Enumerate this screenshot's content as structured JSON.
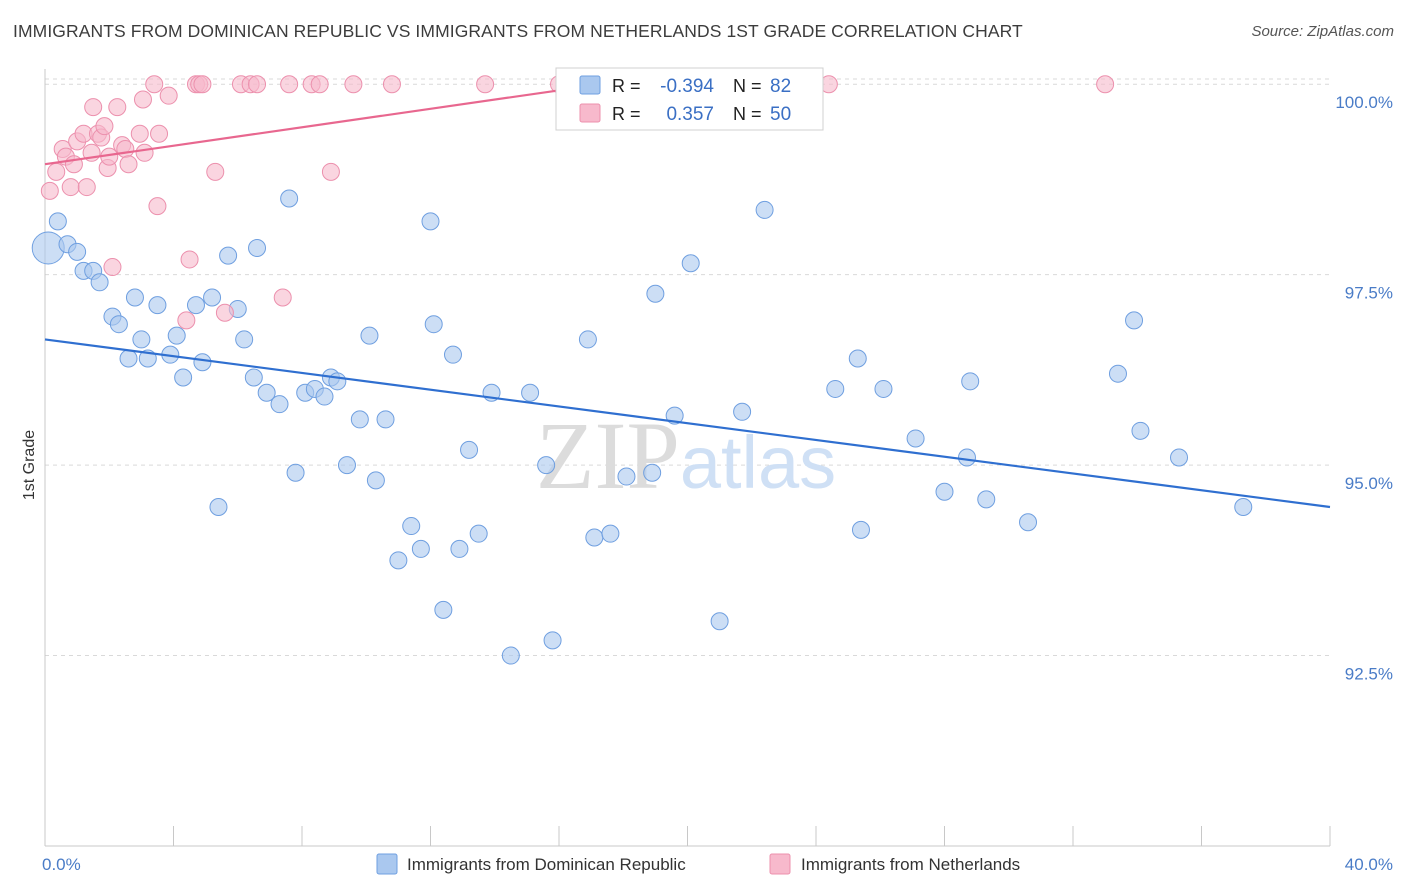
{
  "title": "IMMIGRANTS FROM DOMINICAN REPUBLIC VS IMMIGRANTS FROM NETHERLANDS 1ST GRADE CORRELATION CHART",
  "source": "Source: ZipAtlas.com",
  "watermark": {
    "zip": "ZIP",
    "atlas": "atlas"
  },
  "colors": {
    "blue_fill": "#aac8ef",
    "blue_stroke": "#6f9fe0",
    "blue_line": "#2f6fd0",
    "pink_fill": "#f7b9cc",
    "pink_stroke": "#ec90ad",
    "pink_line": "#e8678f",
    "grid": "#d9d9d9",
    "axis_text": "#4a7cc7"
  },
  "legend_top": {
    "r_label": "R =",
    "n_label": "N =",
    "rows": [
      {
        "r": "-0.394",
        "n": "82"
      },
      {
        "r": "0.357",
        "n": "50"
      }
    ]
  },
  "legend_bottom": [
    {
      "label": "Immigrants from Dominican Republic"
    },
    {
      "label": "Immigrants from Netherlands"
    }
  ],
  "chart_data": {
    "type": "scatter",
    "title": "IMMIGRANTS FROM DOMINICAN REPUBLIC VS IMMIGRANTS FROM NETHERLANDS 1ST GRADE CORRELATION CHART",
    "xlabel": "",
    "ylabel": "1st Grade",
    "xlim": [
      0,
      40
    ],
    "ylim": [
      90.0,
      100.2
    ],
    "x_tick_labels": [
      "0.0%",
      "40.0%"
    ],
    "y_tick_labels": [
      "92.5%",
      "95.0%",
      "97.5%",
      "100.0%"
    ],
    "y_ticks": [
      92.5,
      95.0,
      97.5,
      100.0
    ],
    "x_ticks": [
      0,
      4,
      8,
      12,
      16,
      20,
      24,
      28,
      32,
      36,
      40
    ],
    "grid": true,
    "legend": "top-center",
    "series": [
      {
        "name": "Immigrants from Dominican Republic",
        "color": "#aac8ef",
        "R": -0.394,
        "N": 82,
        "trend": {
          "x": [
            0,
            40
          ],
          "y": [
            96.65,
            94.45
          ]
        },
        "points": [
          [
            0.1,
            97.85
          ],
          [
            0.4,
            98.2
          ],
          [
            0.7,
            97.9
          ],
          [
            1.0,
            97.8
          ],
          [
            1.2,
            97.55
          ],
          [
            1.5,
            97.55
          ],
          [
            1.7,
            97.4
          ],
          [
            2.1,
            96.95
          ],
          [
            2.3,
            96.85
          ],
          [
            2.6,
            96.4
          ],
          [
            2.8,
            97.2
          ],
          [
            3.0,
            96.65
          ],
          [
            3.2,
            96.4
          ],
          [
            3.5,
            97.1
          ],
          [
            3.9,
            96.45
          ],
          [
            4.1,
            96.7
          ],
          [
            4.3,
            96.15
          ],
          [
            4.7,
            97.1
          ],
          [
            4.9,
            96.35
          ],
          [
            5.2,
            97.2
          ],
          [
            5.4,
            94.45
          ],
          [
            5.7,
            97.75
          ],
          [
            6.0,
            97.05
          ],
          [
            6.2,
            96.65
          ],
          [
            6.5,
            96.15
          ],
          [
            6.6,
            97.85
          ],
          [
            6.9,
            95.95
          ],
          [
            7.3,
            95.8
          ],
          [
            7.6,
            98.5
          ],
          [
            7.8,
            94.9
          ],
          [
            8.1,
            95.95
          ],
          [
            8.4,
            96.0
          ],
          [
            8.7,
            95.9
          ],
          [
            8.9,
            96.15
          ],
          [
            9.1,
            96.1
          ],
          [
            9.4,
            95.0
          ],
          [
            9.8,
            95.6
          ],
          [
            10.1,
            96.7
          ],
          [
            10.3,
            94.8
          ],
          [
            10.6,
            95.6
          ],
          [
            11.0,
            93.75
          ],
          [
            11.4,
            94.2
          ],
          [
            11.7,
            93.9
          ],
          [
            12.0,
            98.2
          ],
          [
            12.1,
            96.85
          ],
          [
            12.4,
            93.1
          ],
          [
            12.7,
            96.45
          ],
          [
            12.9,
            93.9
          ],
          [
            13.2,
            95.2
          ],
          [
            13.5,
            94.1
          ],
          [
            13.9,
            95.95
          ],
          [
            14.5,
            92.5
          ],
          [
            15.1,
            95.95
          ],
          [
            15.6,
            95.0
          ],
          [
            15.8,
            92.7
          ],
          [
            16.9,
            96.65
          ],
          [
            17.1,
            94.05
          ],
          [
            17.6,
            94.1
          ],
          [
            18.1,
            94.85
          ],
          [
            18.9,
            94.9
          ],
          [
            19.0,
            97.25
          ],
          [
            19.6,
            95.65
          ],
          [
            20.1,
            97.65
          ],
          [
            21.0,
            92.95
          ],
          [
            21.7,
            95.7
          ],
          [
            22.4,
            98.35
          ],
          [
            24.6,
            96.0
          ],
          [
            25.3,
            96.4
          ],
          [
            25.4,
            94.15
          ],
          [
            26.1,
            96.0
          ],
          [
            27.1,
            95.35
          ],
          [
            28.0,
            94.65
          ],
          [
            28.7,
            95.1
          ],
          [
            28.8,
            96.1
          ],
          [
            29.3,
            94.55
          ],
          [
            30.6,
            94.25
          ],
          [
            33.4,
            96.2
          ],
          [
            33.9,
            96.9
          ],
          [
            34.1,
            95.45
          ],
          [
            35.3,
            95.1
          ],
          [
            37.3,
            94.45
          ]
        ]
      },
      {
        "name": "Immigrants from Netherlands",
        "color": "#f7b9cc",
        "R": 0.357,
        "N": 50,
        "trend": {
          "x": [
            0,
            16.5
          ],
          "y": [
            98.95,
            99.95
          ]
        },
        "points": [
          [
            0.15,
            98.6
          ],
          [
            0.35,
            98.85
          ],
          [
            0.55,
            99.15
          ],
          [
            0.65,
            99.05
          ],
          [
            0.8,
            98.65
          ],
          [
            0.9,
            98.95
          ],
          [
            1.0,
            99.25
          ],
          [
            1.2,
            99.35
          ],
          [
            1.3,
            98.65
          ],
          [
            1.45,
            99.1
          ],
          [
            1.5,
            99.7
          ],
          [
            1.65,
            99.35
          ],
          [
            1.75,
            99.3
          ],
          [
            1.85,
            99.45
          ],
          [
            1.95,
            98.9
          ],
          [
            2.0,
            99.05
          ],
          [
            2.1,
            97.6
          ],
          [
            2.25,
            99.7
          ],
          [
            2.4,
            99.2
          ],
          [
            2.5,
            99.15
          ],
          [
            2.6,
            98.95
          ],
          [
            2.95,
            99.35
          ],
          [
            3.05,
            99.8
          ],
          [
            3.1,
            99.1
          ],
          [
            3.4,
            100.0
          ],
          [
            3.5,
            98.4
          ],
          [
            3.55,
            99.35
          ],
          [
            3.85,
            99.85
          ],
          [
            4.4,
            96.9
          ],
          [
            4.5,
            97.7
          ],
          [
            4.7,
            100.0
          ],
          [
            4.8,
            100.0
          ],
          [
            4.9,
            100.0
          ],
          [
            5.3,
            98.85
          ],
          [
            5.6,
            97.0
          ],
          [
            6.1,
            100.0
          ],
          [
            6.4,
            100.0
          ],
          [
            6.6,
            100.0
          ],
          [
            7.4,
            97.2
          ],
          [
            7.6,
            100.0
          ],
          [
            8.3,
            100.0
          ],
          [
            8.55,
            100.0
          ],
          [
            8.9,
            98.85
          ],
          [
            9.6,
            100.0
          ],
          [
            10.8,
            100.0
          ],
          [
            13.7,
            100.0
          ],
          [
            16.0,
            100.0
          ],
          [
            16.4,
            100.0
          ],
          [
            24.4,
            100.0
          ],
          [
            33.0,
            100.0
          ]
        ]
      }
    ]
  }
}
